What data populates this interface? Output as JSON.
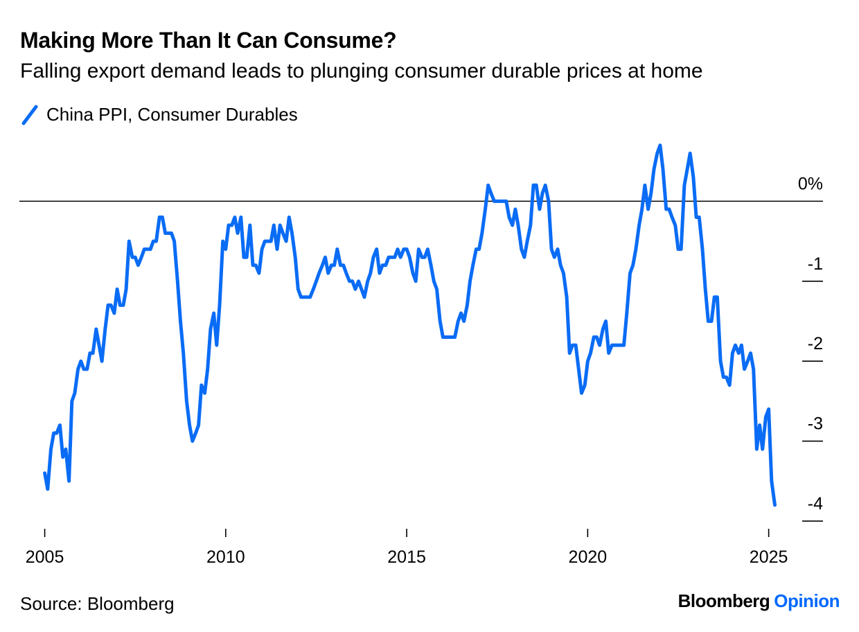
{
  "title": "Making More Than It Can Consume?",
  "subtitle": "Falling export demand leads to plunging consumer durable prices at home",
  "legend": {
    "series_name": "China PPI, Consumer Durables",
    "color": "#0a6cf5"
  },
  "source": "Source: Bloomberg",
  "brand": {
    "name": "Bloomberg",
    "section": "Opinion",
    "section_color": "#0068ff"
  },
  "chart_data": {
    "type": "line",
    "title": "Making More Than It Can Consume?",
    "subtitle": "Falling export demand leads to plunging consumer durable prices at home",
    "xlabel": "",
    "ylabel": "",
    "ylim": [
      -4.2,
      1.0
    ],
    "xlim": [
      2004.3,
      2026.5
    ],
    "x_ticks": [
      2005,
      2010,
      2015,
      2020,
      2025
    ],
    "x_tick_labels": [
      "2005",
      "2010",
      "2015",
      "2020",
      "2025"
    ],
    "y_ticks": [
      0,
      -1,
      -2,
      -3,
      -4
    ],
    "y_tick_labels": [
      "0%",
      "-1",
      "-2",
      "-3",
      "-4"
    ],
    "y_axis_side": "right",
    "zero_line": true,
    "grid": false,
    "legend_position": "top-left",
    "series": [
      {
        "name": "China PPI, Consumer Durables",
        "color": "#0a6cf5",
        "points": [
          [
            2005.0,
            -3.4
          ],
          [
            2005.08,
            -3.6
          ],
          [
            2005.17,
            -3.1
          ],
          [
            2005.25,
            -2.9
          ],
          [
            2005.33,
            -2.9
          ],
          [
            2005.42,
            -2.8
          ],
          [
            2005.5,
            -3.2
          ],
          [
            2005.58,
            -3.1
          ],
          [
            2005.67,
            -3.5
          ],
          [
            2005.75,
            -2.5
          ],
          [
            2005.83,
            -2.4
          ],
          [
            2005.92,
            -2.1
          ],
          [
            2006.0,
            -2.0
          ],
          [
            2006.08,
            -2.1
          ],
          [
            2006.17,
            -2.1
          ],
          [
            2006.25,
            -1.9
          ],
          [
            2006.33,
            -1.9
          ],
          [
            2006.42,
            -1.6
          ],
          [
            2006.5,
            -1.8
          ],
          [
            2006.58,
            -2.0
          ],
          [
            2006.67,
            -1.6
          ],
          [
            2006.75,
            -1.3
          ],
          [
            2006.83,
            -1.3
          ],
          [
            2006.92,
            -1.4
          ],
          [
            2007.0,
            -1.1
          ],
          [
            2007.08,
            -1.3
          ],
          [
            2007.17,
            -1.3
          ],
          [
            2007.25,
            -1.1
          ],
          [
            2007.33,
            -0.5
          ],
          [
            2007.42,
            -0.7
          ],
          [
            2007.5,
            -0.7
          ],
          [
            2007.58,
            -0.8
          ],
          [
            2007.67,
            -0.7
          ],
          [
            2007.75,
            -0.6
          ],
          [
            2007.83,
            -0.6
          ],
          [
            2007.92,
            -0.6
          ],
          [
            2008.0,
            -0.5
          ],
          [
            2008.08,
            -0.5
          ],
          [
            2008.17,
            -0.2
          ],
          [
            2008.25,
            -0.2
          ],
          [
            2008.33,
            -0.4
          ],
          [
            2008.42,
            -0.4
          ],
          [
            2008.5,
            -0.4
          ],
          [
            2008.58,
            -0.5
          ],
          [
            2008.67,
            -1.0
          ],
          [
            2008.75,
            -1.5
          ],
          [
            2008.83,
            -1.9
          ],
          [
            2008.92,
            -2.5
          ],
          [
            2009.0,
            -2.8
          ],
          [
            2009.08,
            -3.0
          ],
          [
            2009.17,
            -2.9
          ],
          [
            2009.25,
            -2.8
          ],
          [
            2009.33,
            -2.3
          ],
          [
            2009.42,
            -2.4
          ],
          [
            2009.5,
            -2.1
          ],
          [
            2009.58,
            -1.6
          ],
          [
            2009.67,
            -1.4
          ],
          [
            2009.75,
            -1.8
          ],
          [
            2009.83,
            -1.3
          ],
          [
            2009.92,
            -0.5
          ],
          [
            2010.0,
            -0.6
          ],
          [
            2010.08,
            -0.3
          ],
          [
            2010.17,
            -0.3
          ],
          [
            2010.25,
            -0.2
          ],
          [
            2010.33,
            -0.4
          ],
          [
            2010.42,
            -0.2
          ],
          [
            2010.5,
            -0.7
          ],
          [
            2010.58,
            -0.7
          ],
          [
            2010.67,
            -0.3
          ],
          [
            2010.75,
            -0.8
          ],
          [
            2010.83,
            -0.8
          ],
          [
            2010.92,
            -0.9
          ],
          [
            2011.0,
            -0.6
          ],
          [
            2011.08,
            -0.5
          ],
          [
            2011.17,
            -0.5
          ],
          [
            2011.25,
            -0.5
          ],
          [
            2011.33,
            -0.3
          ],
          [
            2011.42,
            -0.6
          ],
          [
            2011.5,
            -0.3
          ],
          [
            2011.58,
            -0.4
          ],
          [
            2011.67,
            -0.5
          ],
          [
            2011.75,
            -0.2
          ],
          [
            2011.83,
            -0.4
          ],
          [
            2011.92,
            -0.7
          ],
          [
            2012.0,
            -1.1
          ],
          [
            2012.08,
            -1.2
          ],
          [
            2012.17,
            -1.2
          ],
          [
            2012.25,
            -1.2
          ],
          [
            2012.33,
            -1.2
          ],
          [
            2012.42,
            -1.1
          ],
          [
            2012.5,
            -1.0
          ],
          [
            2012.58,
            -0.9
          ],
          [
            2012.67,
            -0.8
          ],
          [
            2012.75,
            -0.7
          ],
          [
            2012.83,
            -0.9
          ],
          [
            2012.92,
            -0.8
          ],
          [
            2013.0,
            -0.8
          ],
          [
            2013.08,
            -0.6
          ],
          [
            2013.17,
            -0.8
          ],
          [
            2013.25,
            -0.8
          ],
          [
            2013.33,
            -0.9
          ],
          [
            2013.42,
            -1.0
          ],
          [
            2013.5,
            -1.0
          ],
          [
            2013.58,
            -1.1
          ],
          [
            2013.67,
            -1.0
          ],
          [
            2013.75,
            -1.1
          ],
          [
            2013.83,
            -1.2
          ],
          [
            2013.92,
            -1.0
          ],
          [
            2014.0,
            -0.9
          ],
          [
            2014.08,
            -0.7
          ],
          [
            2014.17,
            -0.6
          ],
          [
            2014.25,
            -0.9
          ],
          [
            2014.33,
            -0.8
          ],
          [
            2014.42,
            -0.8
          ],
          [
            2014.5,
            -0.7
          ],
          [
            2014.58,
            -0.7
          ],
          [
            2014.67,
            -0.7
          ],
          [
            2014.75,
            -0.6
          ],
          [
            2014.83,
            -0.7
          ],
          [
            2014.92,
            -0.6
          ],
          [
            2015.0,
            -0.6
          ],
          [
            2015.08,
            -0.7
          ],
          [
            2015.17,
            -0.9
          ],
          [
            2015.25,
            -1.0
          ],
          [
            2015.33,
            -0.6
          ],
          [
            2015.42,
            -0.7
          ],
          [
            2015.5,
            -0.7
          ],
          [
            2015.58,
            -0.6
          ],
          [
            2015.67,
            -0.8
          ],
          [
            2015.75,
            -1.0
          ],
          [
            2015.83,
            -1.1
          ],
          [
            2015.92,
            -1.5
          ],
          [
            2016.0,
            -1.7
          ],
          [
            2016.08,
            -1.7
          ],
          [
            2016.17,
            -1.7
          ],
          [
            2016.25,
            -1.7
          ],
          [
            2016.33,
            -1.7
          ],
          [
            2016.42,
            -1.5
          ],
          [
            2016.5,
            -1.4
          ],
          [
            2016.58,
            -1.5
          ],
          [
            2016.67,
            -1.3
          ],
          [
            2016.75,
            -1.0
          ],
          [
            2016.83,
            -0.8
          ],
          [
            2016.92,
            -0.6
          ],
          [
            2017.0,
            -0.6
          ],
          [
            2017.08,
            -0.4
          ],
          [
            2017.17,
            -0.1
          ],
          [
            2017.25,
            0.2
          ],
          [
            2017.33,
            0.1
          ],
          [
            2017.42,
            0.0
          ],
          [
            2017.5,
            0.0
          ],
          [
            2017.58,
            0.0
          ],
          [
            2017.67,
            0.0
          ],
          [
            2017.75,
            0.0
          ],
          [
            2017.83,
            -0.2
          ],
          [
            2017.92,
            -0.3
          ],
          [
            2018.0,
            -0.1
          ],
          [
            2018.08,
            -0.3
          ],
          [
            2018.17,
            -0.6
          ],
          [
            2018.25,
            -0.7
          ],
          [
            2018.33,
            -0.5
          ],
          [
            2018.42,
            -0.3
          ],
          [
            2018.5,
            0.2
          ],
          [
            2018.58,
            0.2
          ],
          [
            2018.67,
            -0.1
          ],
          [
            2018.75,
            0.1
          ],
          [
            2018.83,
            0.2
          ],
          [
            2018.92,
            0.0
          ],
          [
            2019.0,
            -0.6
          ],
          [
            2019.08,
            -0.7
          ],
          [
            2019.17,
            -0.6
          ],
          [
            2019.25,
            -0.8
          ],
          [
            2019.33,
            -0.9
          ],
          [
            2019.42,
            -1.2
          ],
          [
            2019.5,
            -1.9
          ],
          [
            2019.58,
            -1.8
          ],
          [
            2019.67,
            -1.8
          ],
          [
            2019.75,
            -2.1
          ],
          [
            2019.83,
            -2.4
          ],
          [
            2019.92,
            -2.3
          ],
          [
            2020.0,
            -2.0
          ],
          [
            2020.08,
            -1.9
          ],
          [
            2020.17,
            -1.7
          ],
          [
            2020.25,
            -1.7
          ],
          [
            2020.33,
            -1.8
          ],
          [
            2020.42,
            -1.6
          ],
          [
            2020.5,
            -1.5
          ],
          [
            2020.58,
            -1.9
          ],
          [
            2020.67,
            -1.8
          ],
          [
            2020.75,
            -1.8
          ],
          [
            2020.83,
            -1.8
          ],
          [
            2020.92,
            -1.8
          ],
          [
            2021.0,
            -1.8
          ],
          [
            2021.08,
            -1.4
          ],
          [
            2021.17,
            -0.9
          ],
          [
            2021.25,
            -0.8
          ],
          [
            2021.33,
            -0.6
          ],
          [
            2021.42,
            -0.3
          ],
          [
            2021.5,
            -0.1
          ],
          [
            2021.58,
            0.2
          ],
          [
            2021.67,
            -0.1
          ],
          [
            2021.75,
            0.1
          ],
          [
            2021.83,
            0.4
          ],
          [
            2021.92,
            0.6
          ],
          [
            2022.0,
            0.7
          ],
          [
            2022.08,
            0.4
          ],
          [
            2022.17,
            -0.1
          ],
          [
            2022.25,
            -0.1
          ],
          [
            2022.33,
            -0.2
          ],
          [
            2022.42,
            -0.3
          ],
          [
            2022.5,
            -0.6
          ],
          [
            2022.58,
            -0.6
          ],
          [
            2022.67,
            0.2
          ],
          [
            2022.75,
            0.4
          ],
          [
            2022.83,
            0.6
          ],
          [
            2022.92,
            0.3
          ],
          [
            2023.0,
            -0.2
          ],
          [
            2023.08,
            -0.2
          ],
          [
            2023.17,
            -0.6
          ],
          [
            2023.25,
            -1.1
          ],
          [
            2023.33,
            -1.5
          ],
          [
            2023.42,
            -1.5
          ],
          [
            2023.5,
            -1.2
          ],
          [
            2023.58,
            -1.2
          ],
          [
            2023.67,
            -2.0
          ],
          [
            2023.75,
            -2.2
          ],
          [
            2023.83,
            -2.2
          ],
          [
            2023.92,
            -2.3
          ],
          [
            2024.0,
            -1.9
          ],
          [
            2024.08,
            -1.8
          ],
          [
            2024.17,
            -1.9
          ],
          [
            2024.25,
            -1.8
          ],
          [
            2024.33,
            -2.1
          ],
          [
            2024.42,
            -2.0
          ],
          [
            2024.5,
            -1.9
          ],
          [
            2024.58,
            -2.1
          ],
          [
            2024.67,
            -3.1
          ],
          [
            2024.75,
            -2.8
          ],
          [
            2024.83,
            -3.1
          ],
          [
            2024.92,
            -2.7
          ],
          [
            2025.0,
            -2.6
          ],
          [
            2025.08,
            -3.5
          ],
          [
            2025.17,
            -3.8
          ]
        ]
      }
    ]
  }
}
